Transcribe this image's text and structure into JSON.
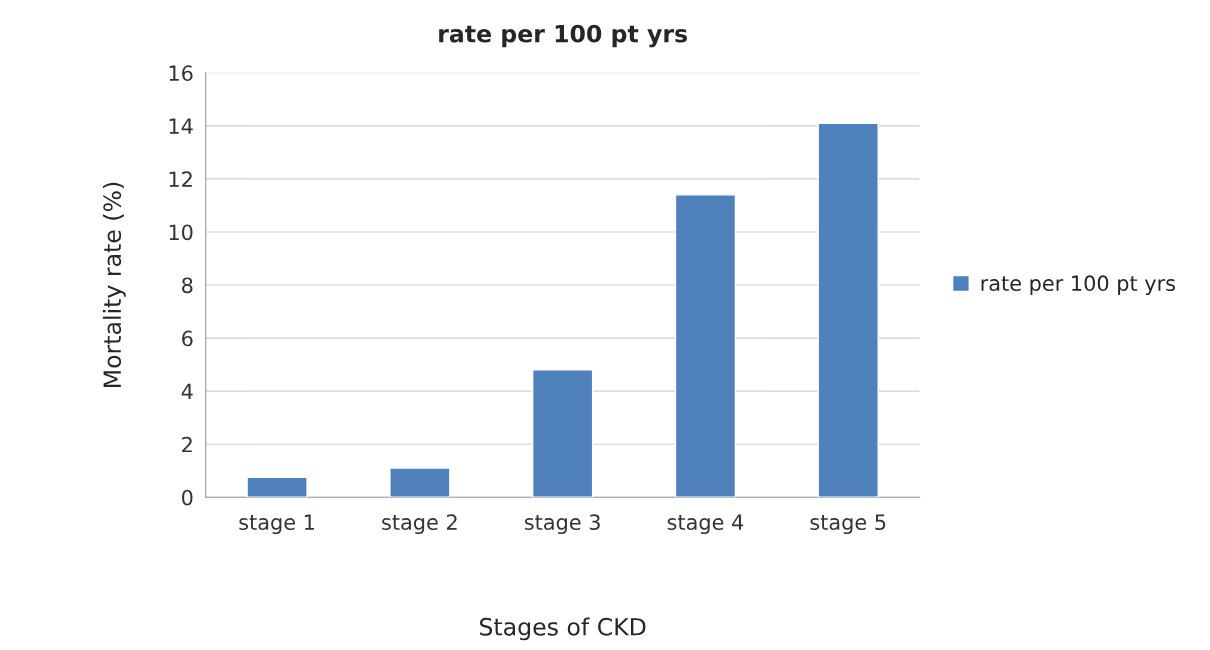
{
  "chart_data": {
    "type": "bar",
    "title": "rate per 100 pt yrs",
    "xlabel": "Stages of CKD",
    "ylabel": "Mortality rate (%)",
    "categories": [
      "stage 1",
      "stage 2",
      "stage 3",
      "stage 4",
      "stage 5"
    ],
    "series": [
      {
        "name": "rate per 100 pt yrs",
        "color": "#4f81bd",
        "values": [
          0.75,
          1.1,
          4.8,
          11.4,
          14.1
        ]
      }
    ],
    "ylim": [
      0,
      16
    ],
    "yticks": [
      0,
      2,
      4,
      6,
      8,
      10,
      12,
      14,
      16
    ],
    "grid": "y",
    "legend": "right"
  }
}
